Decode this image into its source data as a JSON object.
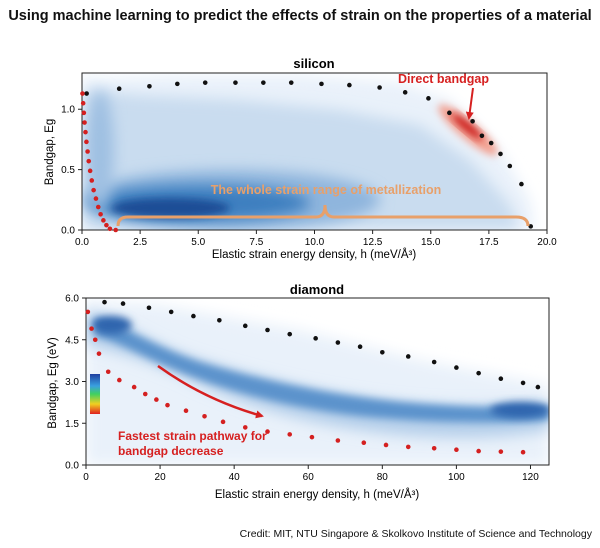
{
  "page": {
    "title": "Using machine learning to predict the effects of strain on the properties of a material",
    "credit": "Credit: MIT, NTU Singapore & Skolkovo Institute of Science and Technology"
  },
  "colors": {
    "density_blue": "#1f5fa8",
    "direct_red": "#d62020",
    "annotation_orange": "#e8a06a",
    "bound_black": "#111111",
    "bound_red": "#d42020"
  },
  "chart_data": [
    {
      "type": "scatter",
      "title": "silicon",
      "xlabel": "Elastic strain energy density, h (meV/Å³)",
      "ylabel": "Bandgap, Eg",
      "xlim": [
        0,
        20
      ],
      "ylim": [
        0,
        1.3
      ],
      "xticks": [
        "0.0",
        "2.5",
        "5.0",
        "7.5",
        "10.0",
        "12.5",
        "15.0",
        "17.5",
        "20.0"
      ],
      "yticks": [
        "0.0",
        "0.5",
        "1.0"
      ],
      "annotations": {
        "direct_bandgap": "Direct bandgap",
        "metallization": "The whole strain range of metallization"
      },
      "series": [
        {
          "name": "upper bound",
          "color": "#111111",
          "points": [
            [
              0.2,
              1.13
            ],
            [
              1.6,
              1.17
            ],
            [
              2.9,
              1.19
            ],
            [
              4.1,
              1.21
            ],
            [
              5.3,
              1.22
            ],
            [
              6.6,
              1.22
            ],
            [
              7.8,
              1.22
            ],
            [
              9.0,
              1.22
            ],
            [
              10.3,
              1.21
            ],
            [
              11.5,
              1.2
            ],
            [
              12.8,
              1.18
            ],
            [
              13.9,
              1.14
            ],
            [
              14.9,
              1.09
            ],
            [
              15.8,
              0.97
            ],
            [
              16.8,
              0.9
            ],
            [
              17.2,
              0.78
            ],
            [
              17.6,
              0.72
            ],
            [
              18.0,
              0.63
            ],
            [
              18.4,
              0.53
            ],
            [
              18.9,
              0.38
            ],
            [
              19.3,
              0.03
            ]
          ]
        },
        {
          "name": "lower bound",
          "color": "#d42020",
          "points": [
            [
              0.02,
              1.13
            ],
            [
              0.05,
              1.05
            ],
            [
              0.08,
              0.97
            ],
            [
              0.11,
              0.89
            ],
            [
              0.15,
              0.81
            ],
            [
              0.19,
              0.73
            ],
            [
              0.24,
              0.65
            ],
            [
              0.29,
              0.57
            ],
            [
              0.35,
              0.49
            ],
            [
              0.42,
              0.41
            ],
            [
              0.5,
              0.33
            ],
            [
              0.6,
              0.26
            ],
            [
              0.7,
              0.19
            ],
            [
              0.8,
              0.13
            ],
            [
              0.92,
              0.08
            ],
            [
              1.05,
              0.04
            ],
            [
              1.2,
              0.01
            ],
            [
              1.45,
              0.0
            ]
          ]
        }
      ]
    },
    {
      "type": "scatter",
      "title": "diamond",
      "xlabel": "Elastic strain energy density, h (meV/Å³)",
      "ylabel": "Bandgap, Eg (eV)",
      "xlim": [
        0,
        125
      ],
      "ylim": [
        0,
        6.0
      ],
      "xticks": [
        "0",
        "20",
        "40",
        "60",
        "80",
        "100",
        "120"
      ],
      "yticks": [
        "0.0",
        "1.5",
        "3.0",
        "4.5",
        "6.0"
      ],
      "annotations": {
        "fastest_pathway_line1": "Fastest strain pathway for",
        "fastest_pathway_line2": "bandgap decrease"
      },
      "series": [
        {
          "name": "upper bound",
          "color": "#111111",
          "points": [
            [
              5,
              5.85
            ],
            [
              10,
              5.8
            ],
            [
              17,
              5.65
            ],
            [
              23,
              5.5
            ],
            [
              29,
              5.35
            ],
            [
              36,
              5.2
            ],
            [
              43,
              5.0
            ],
            [
              49,
              4.85
            ],
            [
              55,
              4.7
            ],
            [
              62,
              4.55
            ],
            [
              68,
              4.4
            ],
            [
              74,
              4.25
            ],
            [
              80,
              4.05
            ],
            [
              87,
              3.9
            ],
            [
              94,
              3.7
            ],
            [
              100,
              3.5
            ],
            [
              106,
              3.3
            ],
            [
              112,
              3.1
            ],
            [
              118,
              2.95
            ],
            [
              122,
              2.8
            ]
          ]
        },
        {
          "name": "lower bound",
          "color": "#d42020",
          "points": [
            [
              0.5,
              5.5
            ],
            [
              1.5,
              4.9
            ],
            [
              2.5,
              4.5
            ],
            [
              3.5,
              4.0
            ],
            [
              6,
              3.35
            ],
            [
              9,
              3.05
            ],
            [
              13,
              2.8
            ],
            [
              16,
              2.55
            ],
            [
              19,
              2.35
            ],
            [
              22,
              2.15
            ],
            [
              27,
              1.95
            ],
            [
              32,
              1.75
            ],
            [
              37,
              1.55
            ],
            [
              43,
              1.35
            ],
            [
              49,
              1.2
            ],
            [
              55,
              1.1
            ],
            [
              61,
              1.0
            ],
            [
              68,
              0.88
            ],
            [
              75,
              0.8
            ],
            [
              81,
              0.72
            ],
            [
              87,
              0.65
            ],
            [
              94,
              0.6
            ],
            [
              100,
              0.55
            ],
            [
              106,
              0.5
            ],
            [
              112,
              0.48
            ],
            [
              118,
              0.46
            ]
          ]
        }
      ]
    }
  ]
}
